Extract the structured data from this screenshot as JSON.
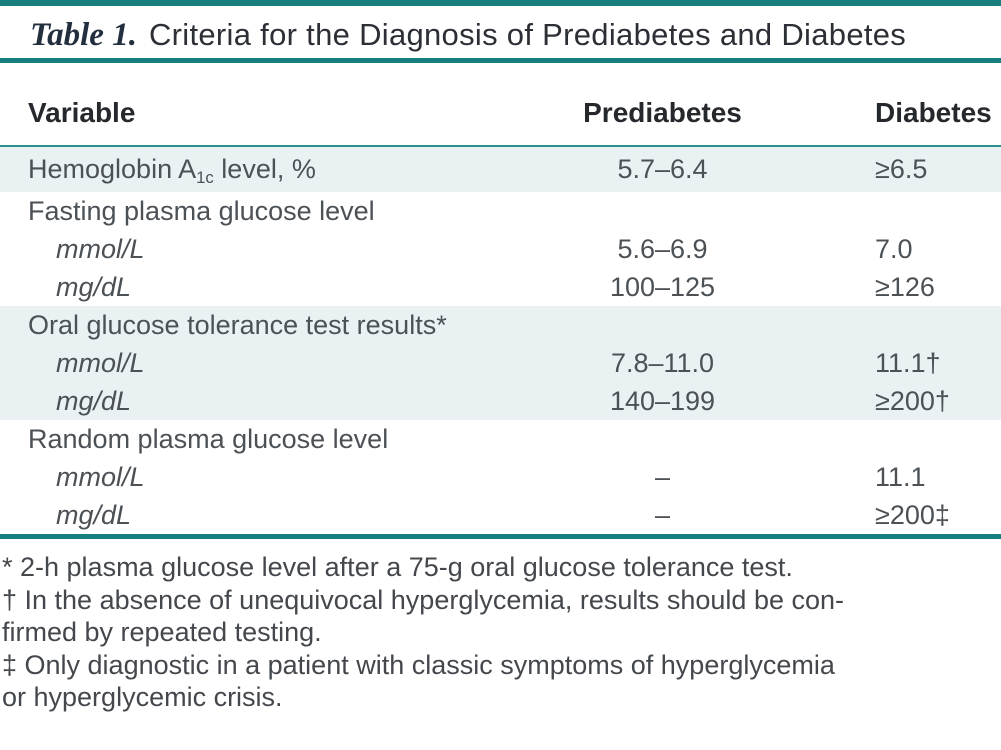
{
  "colors": {
    "accent_teal": "#17807F",
    "row_shade": "#E9F1F3"
  },
  "title": {
    "label": "Table 1.",
    "text": "Criteria for the Diagnosis of Prediabetes and Diabetes"
  },
  "table": {
    "columns": [
      "Variable",
      "Prediabetes",
      "Diabetes"
    ],
    "rows": [
      {
        "variable_pre": "Hemoglobin A",
        "variable_sub": "1c",
        "variable_post": " level, %",
        "prediabetes": "5.7–6.4",
        "diabetes": "≥6.5"
      },
      {
        "variable": "Fasting plasma glucose level",
        "prediabetes": "",
        "diabetes": ""
      },
      {
        "variable": "mmol/L",
        "prediabetes": "5.6–6.9",
        "diabetes": "7.0"
      },
      {
        "variable": "mg/dL",
        "prediabetes": "100–125",
        "diabetes": "≥126"
      },
      {
        "variable": "Oral glucose tolerance test results*",
        "prediabetes": "",
        "diabetes": ""
      },
      {
        "variable": "mmol/L",
        "prediabetes": "7.8–11.0",
        "diabetes": "11.1†"
      },
      {
        "variable": "mg/dL",
        "prediabetes": "140–199",
        "diabetes": "≥200†"
      },
      {
        "variable": "Random plasma glucose level",
        "prediabetes": "",
        "diabetes": ""
      },
      {
        "variable": "mmol/L",
        "prediabetes": "–",
        "diabetes": "11.1"
      },
      {
        "variable": "mg/dL",
        "prediabetes": "–",
        "diabetes": "≥200‡"
      }
    ]
  },
  "footnote_lines": [
    "* 2-h plasma glucose level after a 75-g oral glucose tolerance test.",
    "† In the absence of unequivocal hyperglycemia, results should be con-",
    "firmed by repeated testing.",
    "‡ Only diagnostic in a patient with classic symptoms of hyperglycemia",
    "or hyperglycemic crisis."
  ]
}
